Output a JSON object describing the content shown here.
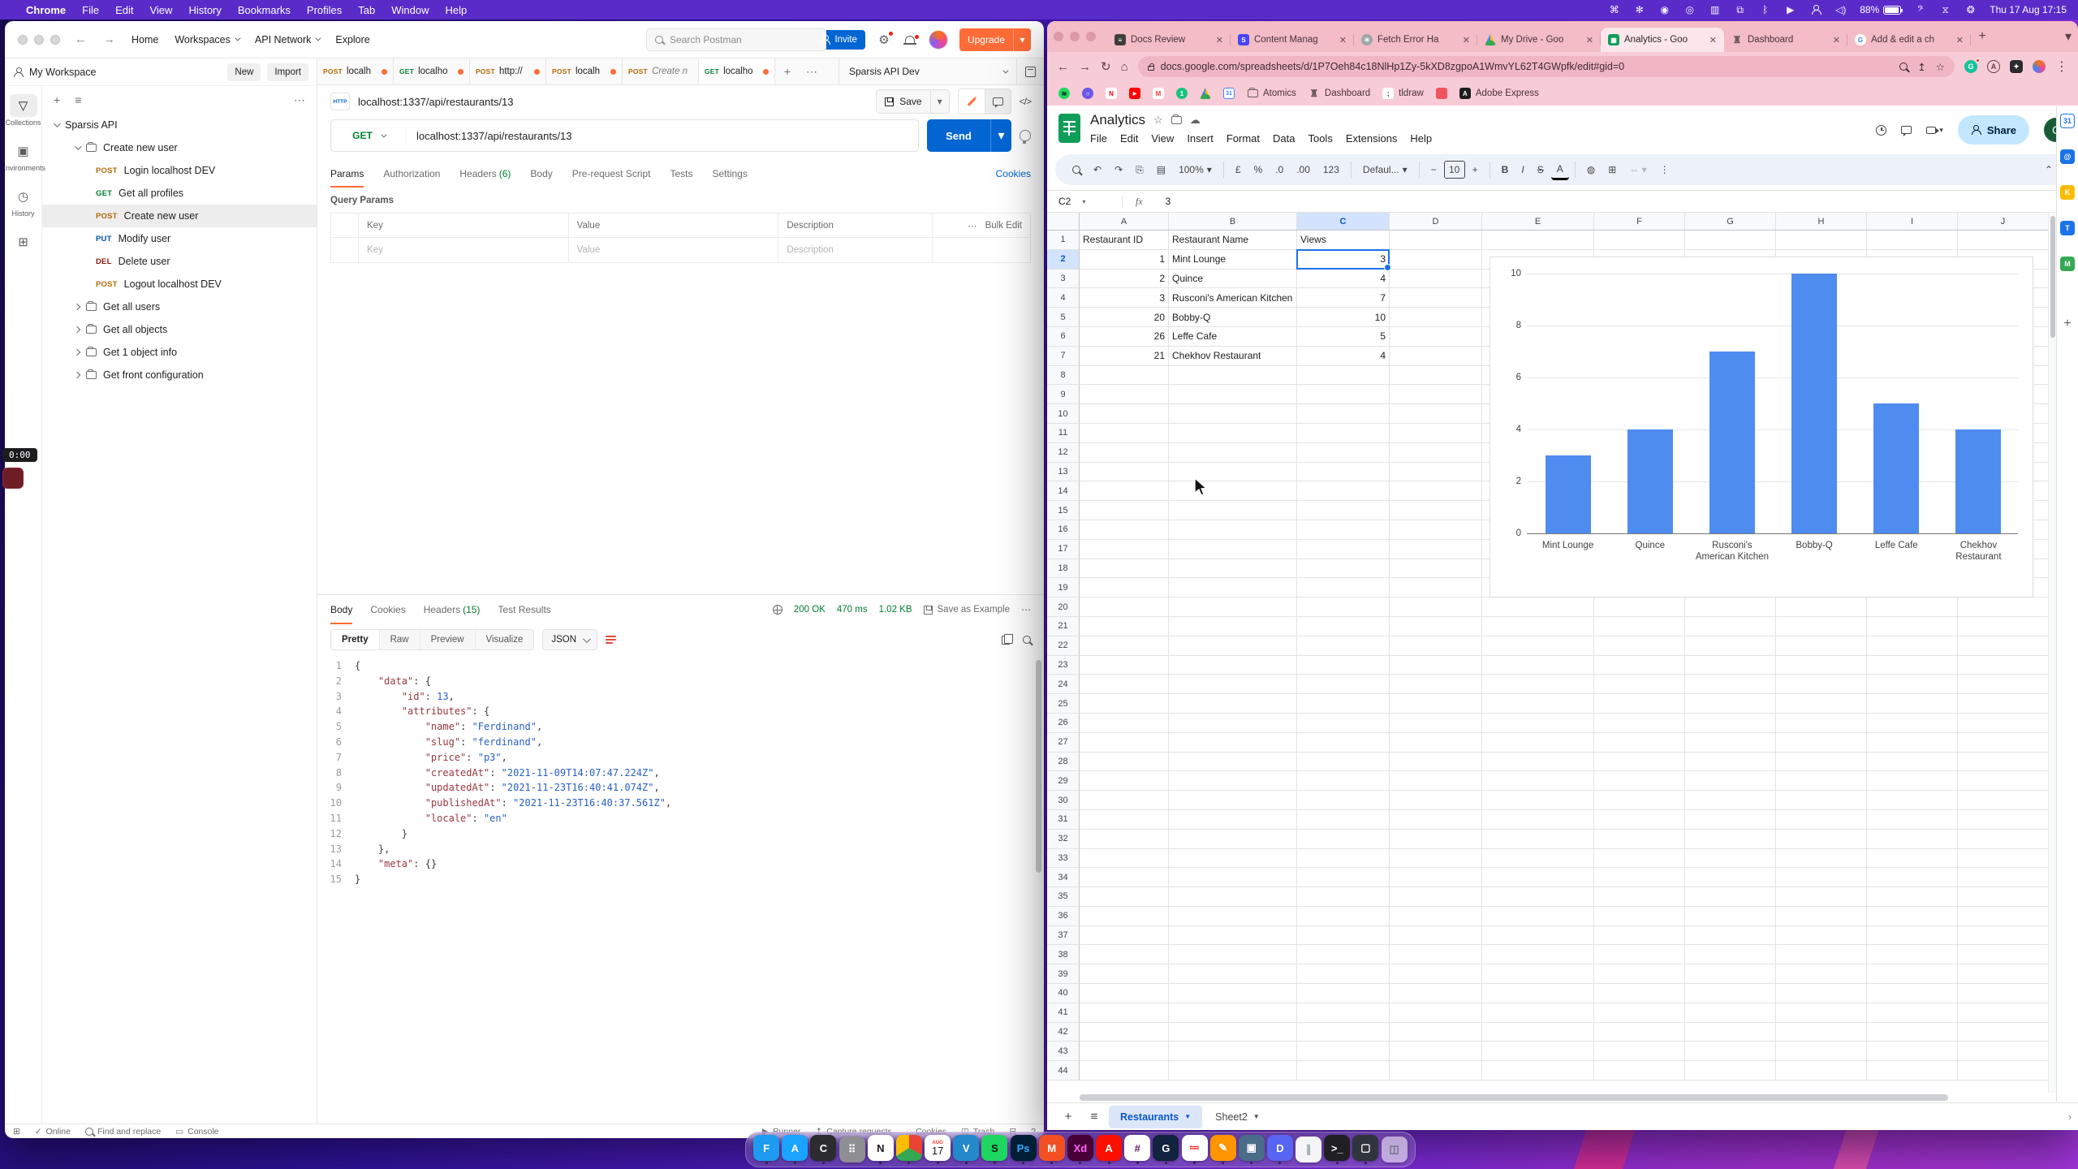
{
  "menubar": {
    "app": "Chrome",
    "menus": [
      "File",
      "Edit",
      "View",
      "History",
      "Bookmarks",
      "Profiles",
      "Tab",
      "Window",
      "Help"
    ],
    "battery": "88%",
    "clock": "Thu 17 Aug 17:15"
  },
  "recording": {
    "time": "0:00"
  },
  "postman": {
    "nav": {
      "home": "Home",
      "workspaces": "Workspaces",
      "api_network": "API Network",
      "explore": "Explore",
      "search_placeholder": "Search Postman",
      "invite": "Invite",
      "upgrade": "Upgrade"
    },
    "sidebar": {
      "workspace": "My Workspace",
      "new": "New",
      "import": "Import",
      "rail": [
        {
          "label": "Collections",
          "active": true
        },
        {
          "label": "Environments",
          "active": false
        },
        {
          "label": "History",
          "active": false
        },
        {
          "label": "",
          "active": false
        }
      ],
      "tree": [
        {
          "type": "collection",
          "label": "Sparsis API",
          "expanded": true,
          "depth": 0
        },
        {
          "type": "folder",
          "label": "Create new user",
          "expanded": true,
          "depth": 1
        },
        {
          "type": "request",
          "method": "POST",
          "label": "Login localhost DEV",
          "depth": 2
        },
        {
          "type": "request",
          "method": "GET",
          "label": "Get all profiles",
          "depth": 2
        },
        {
          "type": "request",
          "method": "POST",
          "label": "Create new user",
          "depth": 2,
          "selected": true
        },
        {
          "type": "request",
          "method": "PUT",
          "label": "Modify user",
          "depth": 2
        },
        {
          "type": "request",
          "method": "DEL",
          "label": "Delete user",
          "depth": 2
        },
        {
          "type": "request",
          "method": "POST",
          "label": "Logout localhost DEV",
          "depth": 2
        },
        {
          "type": "folder",
          "label": "Get all users",
          "expanded": false,
          "depth": 1
        },
        {
          "type": "folder",
          "label": "Get all objects",
          "expanded": false,
          "depth": 1
        },
        {
          "type": "folder",
          "label": "Get 1 object info",
          "expanded": false,
          "depth": 1
        },
        {
          "type": "folder",
          "label": "Get front configuration",
          "expanded": false,
          "depth": 1
        }
      ]
    },
    "tabs": [
      {
        "method": "POST",
        "label": "localh",
        "dot": true
      },
      {
        "method": "GET",
        "label": "localho",
        "dot": true
      },
      {
        "method": "POST",
        "label": "http://",
        "dot": true
      },
      {
        "method": "POST",
        "label": "localh",
        "dot": true
      },
      {
        "method": "POST",
        "label": "Create n",
        "dot": false,
        "draft": true
      },
      {
        "method": "GET",
        "label": "localho",
        "dot": true,
        "active": true
      }
    ],
    "environment": "Sparsis API Dev",
    "request": {
      "title": "localhost:1337/api/restaurants/13",
      "save_label": "Save",
      "method": "GET",
      "url": "localhost:1337/api/restaurants/13",
      "send_label": "Send",
      "tabs": [
        {
          "label": "Params",
          "active": true
        },
        {
          "label": "Authorization"
        },
        {
          "label": "Headers",
          "count": "(6)"
        },
        {
          "label": "Body"
        },
        {
          "label": "Pre-request Script"
        },
        {
          "label": "Tests"
        },
        {
          "label": "Settings"
        }
      ],
      "cookies_link": "Cookies",
      "query_params_title": "Query Params",
      "col_key": "Key",
      "col_value": "Value",
      "col_description": "Description",
      "bulk_edit": "Bulk Edit",
      "ph_key": "Key",
      "ph_value": "Value",
      "ph_description": "Description"
    },
    "response": {
      "tabs": [
        {
          "label": "Body",
          "active": true
        },
        {
          "label": "Cookies"
        },
        {
          "label": "Headers",
          "count": "(15)"
        },
        {
          "label": "Test Results"
        }
      ],
      "status": "200 OK",
      "time": "470 ms",
      "size": "1.02 KB",
      "save_as_example": "Save as Example",
      "view_tabs": [
        "Pretty",
        "Raw",
        "Preview",
        "Visualize"
      ],
      "active_view": "Pretty",
      "format": "JSON",
      "code_lines": [
        "{",
        "    \"data\": {",
        "        \"id\": 13,",
        "        \"attributes\": {",
        "            \"name\": \"Ferdinand\",",
        "            \"slug\": \"ferdinand\",",
        "            \"price\": \"p3\",",
        "            \"createdAt\": \"2021-11-09T14:07:47.224Z\",",
        "            \"updatedAt\": \"2021-11-23T16:40:41.074Z\",",
        "            \"publishedAt\": \"2021-11-23T16:40:37.561Z\",",
        "            \"locale\": \"en\"",
        "        }",
        "    },",
        "    \"meta\": {}",
        "}"
      ]
    },
    "footer": {
      "left": [
        "Online",
        "Find and replace",
        "Console"
      ],
      "right": [
        "Runner",
        "Capture requests",
        "Cookies",
        "Trash"
      ]
    }
  },
  "chrome": {
    "tabs": [
      {
        "title": "Docs Review",
        "icon": "docs"
      },
      {
        "title": "Content Manag",
        "icon": "strapi"
      },
      {
        "title": "Fetch Error Ha",
        "icon": "gpt"
      },
      {
        "title": "My Drive - Goo",
        "icon": "drive"
      },
      {
        "title": "Analytics - Goo",
        "icon": "sheets",
        "active": true
      },
      {
        "title": "Dashboard",
        "icon": "castle"
      },
      {
        "title": "Add & edit a ch",
        "icon": "google"
      }
    ],
    "url": "docs.google.com/spreadsheets/d/1P7Oeh84c18NlHp1Zy-5kXD8zgpoA1WmvYL62T4GWpfk/edit#gid=0",
    "bookmarks": [
      {
        "label": "",
        "icon": "spotify"
      },
      {
        "label": "",
        "icon": "onepassword"
      },
      {
        "label": "",
        "icon": "netflix"
      },
      {
        "label": "",
        "icon": "youtube"
      },
      {
        "label": "",
        "icon": "gmail"
      },
      {
        "label": "",
        "icon": "greenapp"
      },
      {
        "label": "",
        "icon": "drive"
      },
      {
        "label": "",
        "icon": "calendar"
      },
      {
        "label": "Atomics",
        "icon": "folder"
      },
      {
        "label": "Dashboard",
        "icon": "castle"
      },
      {
        "label": "tldraw",
        "icon": "semicolon"
      },
      {
        "label": "",
        "icon": "redblock"
      },
      {
        "label": "Adobe Express",
        "icon": "adobe"
      }
    ]
  },
  "sheets": {
    "title": "Analytics",
    "menus": [
      "File",
      "Edit",
      "View",
      "Insert",
      "Format",
      "Data",
      "Tools",
      "Extensions",
      "Help"
    ],
    "share_label": "Share",
    "avatar_letter": "C",
    "toolbar": {
      "zoom": "100%",
      "currency": "£",
      "percent": "%",
      "dec_less": ".0",
      "dec_more": ".00",
      "num": "123",
      "font": "Defaul...",
      "size": "10"
    },
    "name_box": "C2",
    "formula_value": "3",
    "col_letters": [
      "A",
      "B",
      "C",
      "D",
      "E",
      "F",
      "G",
      "H",
      "I",
      "J"
    ],
    "selected": {
      "col": "C",
      "row": 2
    },
    "num_rows": 44,
    "table": {
      "headers": [
        "Restaurant ID",
        "Restaurant Name",
        "Views"
      ],
      "rows": [
        [
          "1",
          "Mint Lounge",
          "3"
        ],
        [
          "2",
          "Quince",
          "4"
        ],
        [
          "3",
          "Rusconi's American Kitchen",
          "7"
        ],
        [
          "20",
          "Bobby-Q",
          "10"
        ],
        [
          "26",
          "Leffe Cafe",
          "5"
        ],
        [
          "21",
          "Chekhov Restaurant",
          "4"
        ]
      ]
    },
    "sheet_tabs": [
      {
        "label": "Restaurants",
        "active": true
      },
      {
        "label": "Sheet2",
        "active": false
      }
    ]
  },
  "chart_data": {
    "type": "bar",
    "categories": [
      "Mint Lounge",
      "Quince",
      "Rusconi's American Kitchen",
      "Bobby-Q",
      "Leffe Cafe",
      "Chekhov Restaurant"
    ],
    "values": [
      3,
      4,
      7,
      10,
      5,
      4
    ],
    "title": "",
    "xlabel": "",
    "ylabel": "",
    "ylim": [
      0,
      10
    ],
    "yticks": [
      0,
      2,
      4,
      6,
      8,
      10
    ],
    "bar_color": "#4e8cf0",
    "grid": true,
    "legend": "none"
  },
  "side_panel": [
    {
      "name": "calendar",
      "bg": "#fff",
      "fg": "#1a73e8",
      "glyph": "31"
    },
    {
      "name": "contacts",
      "bg": "#1a73e8",
      "fg": "#fff",
      "glyph": "@"
    },
    {
      "name": "keep",
      "bg": "#fbbc04",
      "fg": "#fff",
      "glyph": "K"
    },
    {
      "name": "tasks",
      "bg": "#1a73e8",
      "fg": "#fff",
      "glyph": "T"
    },
    {
      "name": "maps",
      "bg": "#34a853",
      "fg": "#fff",
      "glyph": "M"
    }
  ],
  "dock": [
    {
      "name": "finder",
      "bg": "#1e9bf0",
      "glyph": "F",
      "dot": true
    },
    {
      "name": "app-store",
      "bg": "#1aa3ff",
      "glyph": "A",
      "dot": true
    },
    {
      "name": "camera-app",
      "bg": "#2b2b30",
      "glyph": "C",
      "dot": true
    },
    {
      "name": "launchpad",
      "bg": "#8e8e93",
      "glyph": "⠿",
      "dot": false
    },
    {
      "name": "notion",
      "bg": "#ffffff",
      "fg": "#1c1c1e",
      "glyph": "N",
      "dot": true
    },
    {
      "name": "chrome",
      "bg": "conic-gradient(#ea4335 0 33%,#34a853 33% 66%,#fbbc04 66% 100%)",
      "glyph": "",
      "dot": true
    },
    {
      "name": "calendar",
      "bg": "cal",
      "glyph": "17",
      "dot": true
    },
    {
      "name": "vscode",
      "bg": "#2489ca",
      "glyph": "V",
      "dot": true
    },
    {
      "name": "spotify",
      "bg": "#1ed760",
      "fg": "#191414",
      "glyph": "S",
      "dot": true
    },
    {
      "name": "photoshop",
      "bg": "#001e36",
      "fg": "#31a8ff",
      "glyph": "Ps",
      "dot": true
    },
    {
      "name": "capture-app",
      "bg": "#f25022",
      "glyph": "M",
      "dot": true
    },
    {
      "name": "adobe-xd",
      "bg": "#470137",
      "fg": "#ff61f6",
      "glyph": "Xd",
      "dot": true
    },
    {
      "name": "acrobat",
      "bg": "#fa0f00",
      "glyph": "A",
      "dot": true
    },
    {
      "name": "slack",
      "bg": "#ffffff",
      "fg": "#611f69",
      "glyph": "#",
      "dot": true
    },
    {
      "name": "grammarly",
      "bg": "#11233f",
      "glyph": "G",
      "dot": true
    },
    {
      "name": "reminders",
      "bg": "#ffffff",
      "fg": "#ff3b30",
      "glyph": "≔",
      "dot": true
    },
    {
      "name": "pencil-app",
      "bg": "#ff9500",
      "glyph": "✎",
      "dot": true
    },
    {
      "name": "screen-app",
      "bg": "#4a6b8a",
      "glyph": "▣",
      "dot": true
    },
    {
      "name": "discord",
      "bg": "#5865f2",
      "glyph": "D",
      "dot": true
    },
    {
      "name": "milk-app",
      "bg": "#f5f5f7",
      "fg": "#9aa0a6",
      "glyph": "∥",
      "dot": false
    },
    {
      "name": "terminal",
      "bg": "#1f1f24",
      "glyph": ">_",
      "dot": true
    },
    {
      "name": "display-app",
      "bg": "#30343c",
      "glyph": "▢",
      "dot": true
    },
    {
      "name": "trash",
      "bg": "rgba(255,255,255,.55)",
      "fg": "#6b7280",
      "glyph": "◫",
      "dot": false
    }
  ]
}
